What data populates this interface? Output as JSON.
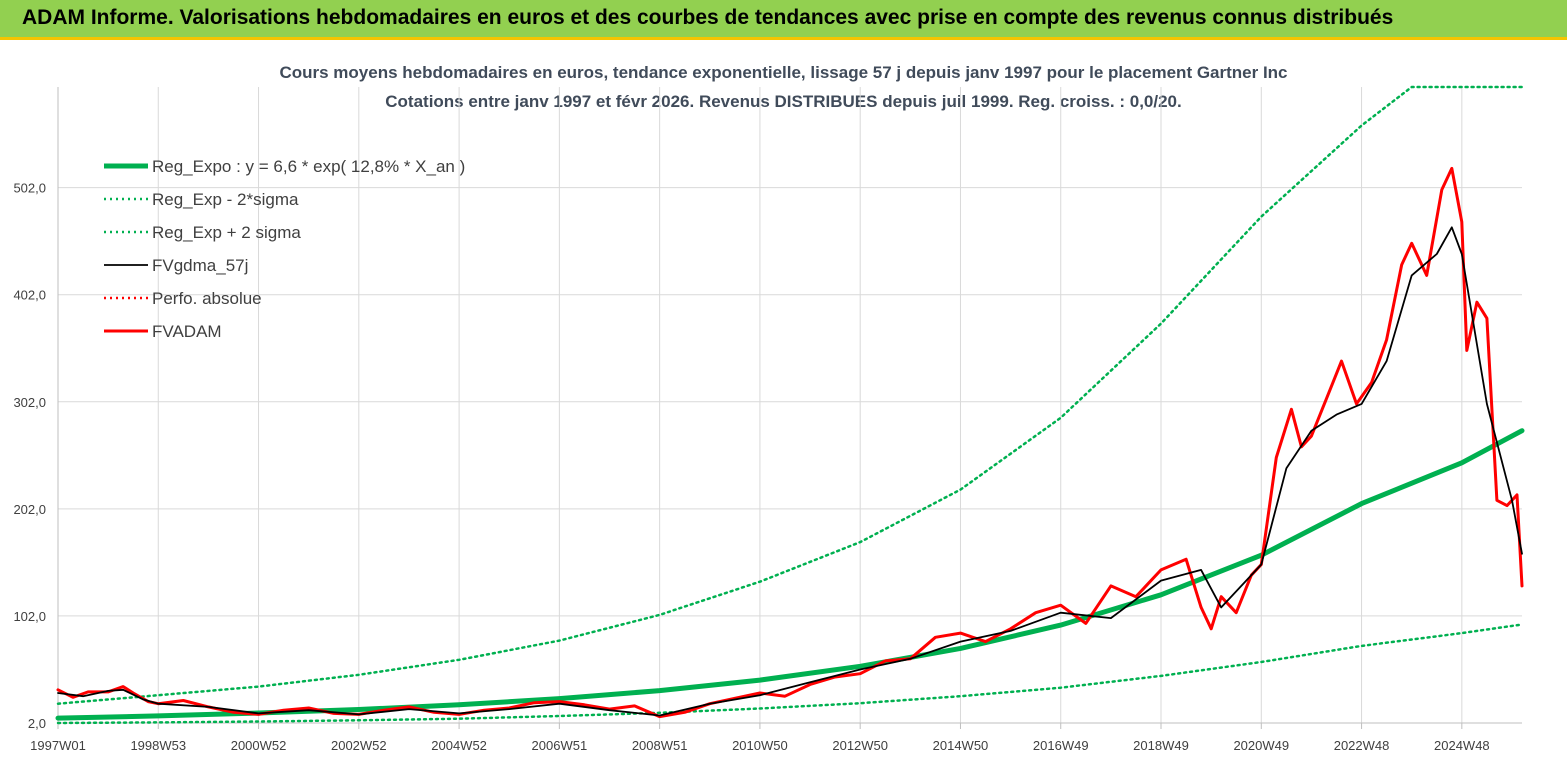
{
  "banner": {
    "title": "ADAM Informe. Valorisations hebdomadaires en euros et des courbes de tendances avec prise en compte des revenus connus distribués",
    "background": "#92d050"
  },
  "chart_data": {
    "type": "line",
    "title_line1": "Cours moyens hebdomadaires en euros, tendance exponentielle, lissage 57 j depuis janv 1997 pour le placement Gartner Inc",
    "title_line2": "Cotations entre janv 1997 et févr 2026. Revenus DISTRIBUES depuis juil 1999. Reg. croiss. : 0,0/20.",
    "xlabel": "",
    "ylabel": "",
    "x_range": [
      1997.0,
      2026.2
    ],
    "ylim": [
      2.0,
      596.0
    ],
    "y_ticks": [
      2.0,
      102.0,
      202.0,
      302.0,
      402.0,
      502.0
    ],
    "y_tick_labels": [
      "2,0",
      "102,0",
      "202,0",
      "302,0",
      "402,0",
      "502,0"
    ],
    "x_tick_years": [
      1997.0,
      1999.0,
      2001.0,
      2003.0,
      2005.0,
      2007.0,
      2009.0,
      2011.0,
      2013.0,
      2015.0,
      2017.0,
      2019.0,
      2021.0,
      2023.0,
      2025.0
    ],
    "x_tick_labels": [
      "1997W01",
      "1998W53",
      "2000W52",
      "2002W52",
      "2004W52",
      "2006W51",
      "2008W51",
      "2010W50",
      "2012W50",
      "2014W50",
      "2016W49",
      "2018W49",
      "2020W49",
      "2022W48",
      "2024W48"
    ],
    "grid": true,
    "legend_position": "top-left",
    "series": [
      {
        "name": "Reg_Expo : y = 6,6 * exp( 12,8% *  X_an )",
        "color": "#00b050",
        "style": "thick",
        "x": [
          1997,
          1999,
          2001,
          2003,
          2005,
          2007,
          2009,
          2011,
          2013,
          2015,
          2017,
          2019,
          2021,
          2023,
          2025,
          2026.2
        ],
        "values": [
          6.6,
          8.6,
          11.3,
          14.6,
          19.0,
          24.8,
          32.3,
          42.1,
          55.0,
          71.7,
          93.4,
          121.7,
          158.7,
          206.9,
          245.0,
          275.0
        ]
      },
      {
        "name": "Reg_Exp - 2*sigma",
        "color": "#00b050",
        "style": "dotted",
        "x": [
          1997,
          1999,
          2001,
          2003,
          2005,
          2007,
          2009,
          2011,
          2013,
          2015,
          2017,
          2019,
          2021,
          2023,
          2025,
          2026.2
        ],
        "values": [
          2.0,
          2.6,
          3.4,
          4.5,
          6.0,
          8.5,
          11.5,
          15.5,
          20.5,
          27.0,
          35.0,
          46.0,
          59.0,
          74.0,
          86.0,
          94.0
        ]
      },
      {
        "name": "Reg_Exp + 2 sigma",
        "color": "#00b050",
        "style": "dotted",
        "x": [
          1997,
          1999,
          2001,
          2003,
          2005,
          2007,
          2009,
          2011,
          2013,
          2015,
          2017,
          2019,
          2021,
          2023,
          2024,
          2026.2
        ],
        "values": [
          20.0,
          28.0,
          36.0,
          47.0,
          61.0,
          79.0,
          103.0,
          134.0,
          171.0,
          220.0,
          287.0,
          375.0,
          475.0,
          560.0,
          596.0,
          596.0
        ]
      },
      {
        "name": "FVgdma_57j",
        "color": "#000000",
        "style": "thin",
        "x": [
          1997,
          1997.5,
          1998,
          1998.3,
          1998.7,
          1999,
          2000,
          2001,
          2002,
          2003,
          2004,
          2005,
          2006,
          2007,
          2008,
          2009,
          2010,
          2011,
          2012,
          2013,
          2014,
          2015,
          2016,
          2017,
          2018,
          2019,
          2019.8,
          2020.2,
          2021,
          2021.5,
          2022,
          2022.5,
          2023,
          2023.5,
          2024,
          2024.5,
          2024.8,
          2025,
          2025.5,
          2026,
          2026.2
        ],
        "values": [
          30,
          27,
          32,
          33,
          24,
          20,
          17,
          11,
          14,
          10,
          15,
          11,
          15,
          20,
          14,
          9,
          20,
          28,
          40,
          52,
          62,
          78,
          88,
          105,
          100,
          135,
          145,
          110,
          150,
          240,
          275,
          290,
          300,
          340,
          420,
          440,
          465,
          440,
          300,
          210,
          160
        ]
      },
      {
        "name": "Perfo. absolue",
        "color": "#ff0000",
        "style": "dotted",
        "x": [],
        "values": []
      },
      {
        "name": "FVADAM",
        "color": "#ff0000",
        "style": "thick-red",
        "x": [
          1997,
          1997.3,
          1997.6,
          1998,
          1998.3,
          1998.5,
          1998.8,
          1999,
          1999.5,
          2000,
          2000.5,
          2001,
          2001.5,
          2002,
          2002.5,
          2003,
          2003.5,
          2004,
          2004.5,
          2005,
          2005.5,
          2006,
          2006.5,
          2007,
          2007.5,
          2008,
          2008.5,
          2009,
          2009.5,
          2010,
          2010.5,
          2011,
          2011.5,
          2012,
          2012.5,
          2013,
          2013.5,
          2014,
          2014.5,
          2015,
          2015.5,
          2016,
          2016.5,
          2017,
          2017.5,
          2018,
          2018.5,
          2019,
          2019.5,
          2019.8,
          2020.0,
          2020.2,
          2020.5,
          2020.8,
          2021,
          2021.3,
          2021.6,
          2021.8,
          2022,
          2022.3,
          2022.6,
          2022.9,
          2023.2,
          2023.5,
          2023.8,
          2024,
          2024.3,
          2024.6,
          2024.8,
          2025,
          2025.1,
          2025.3,
          2025.5,
          2025.7,
          2025.9,
          2026.1,
          2026.2
        ],
        "values": [
          33,
          26,
          31,
          31,
          36,
          30,
          22,
          20,
          23,
          17,
          12,
          10,
          14,
          16,
          11,
          10,
          14,
          17,
          12,
          10,
          14,
          16,
          21,
          22,
          19,
          15,
          18,
          8,
          12,
          20,
          25,
          30,
          27,
          38,
          45,
          48,
          60,
          62,
          82,
          86,
          78,
          90,
          105,
          112,
          95,
          130,
          120,
          145,
          155,
          110,
          90,
          120,
          105,
          140,
          150,
          250,
          295,
          260,
          270,
          305,
          340,
          300,
          320,
          360,
          430,
          450,
          420,
          500,
          520,
          470,
          350,
          395,
          380,
          210,
          205,
          215,
          130
        ]
      }
    ]
  }
}
